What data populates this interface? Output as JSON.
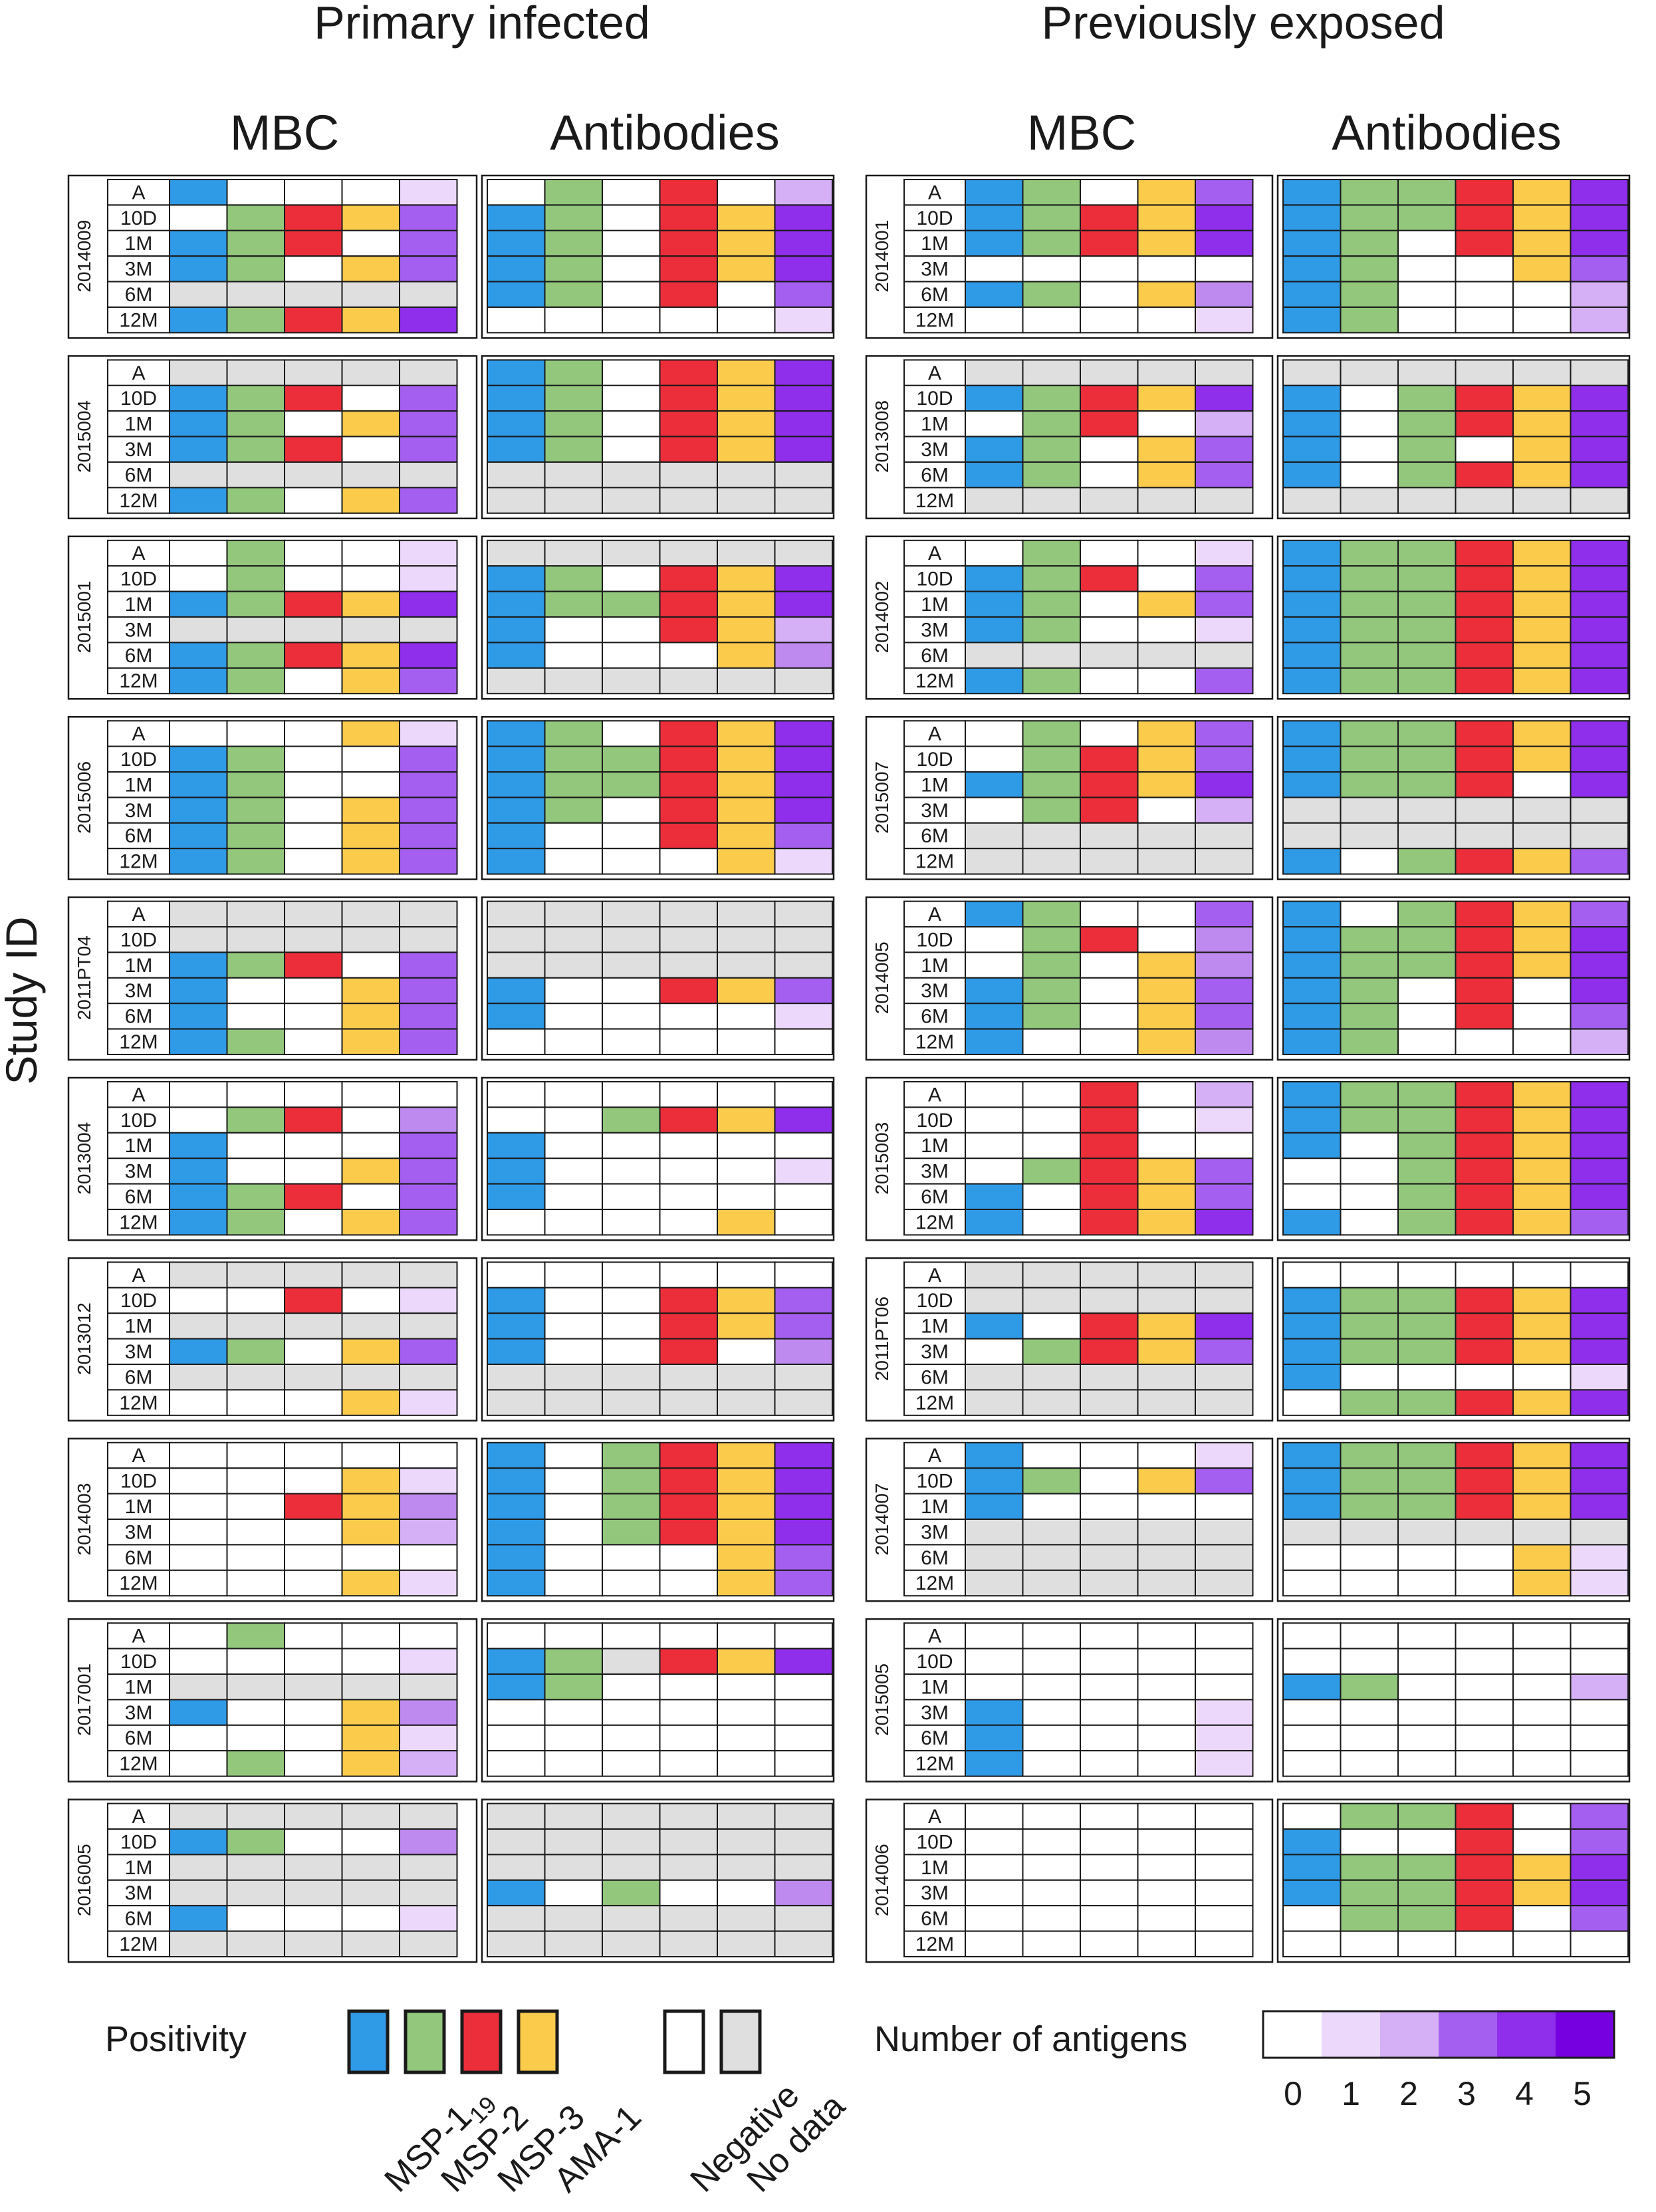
{
  "figure": {
    "groups": [
      "Primary infected",
      "Previously exposed"
    ],
    "subheadings": [
      "MBC",
      "Antibodies",
      "MBC",
      "Antibodies"
    ],
    "y_axis_label": "Study ID"
  },
  "chart_data": {
    "type": "heatmap",
    "timepoints": [
      "A",
      "10D",
      "1M",
      "3M",
      "6M",
      "12M"
    ],
    "antigens": [
      "MSP-1",
      "MSP-2",
      "MSP-3",
      "AMA-1"
    ],
    "antigen_subscript": "19",
    "antigen_colors": {
      "MSP-1": "#2f9ae6",
      "MSP-2": "#92c77c",
      "MSP-3": "#ec2e3a",
      "AMA-1": "#fbcb4c"
    },
    "negative_color": "#ffffff",
    "nodata_color": "#e0dfe0",
    "count_colors": [
      "#ffffff",
      "#ecd8fb",
      "#d5b0f6",
      "#be8aef",
      "#a55ff0",
      "#8f2eeb",
      "#7600e0"
    ],
    "encoding": "Each row lists a timepoint: one letter per antigen column (MSP-1, MSP-2, MSP-3, AMA-1) plus a digit = number of positive antigens. Letters: B/G/R/Y positive, 0 negative, X no data. X in the count column = no data.",
    "primary_infected": [
      {
        "id": "2014009",
        "mbc": [
          "B0001",
          "0GRY4",
          "BGR04",
          "BG0Y4",
          "XXXXX",
          "BGRY5"
        ],
        "ab": [
          "0GOR0",
          "BGORY",
          "BG0RY",
          "BG0RY",
          "BG0R0",
          "00000"
        ]
      },
      {
        "id": "2015004",
        "mbc": [
          "XXXXX",
          "BGR04",
          "BG0Y4",
          "BGR04",
          "XXXXX",
          "BG0Y4"
        ],
        "ab": [
          "BG0RY",
          "BG0RY",
          "BG0RY",
          "BG0RY",
          "XXXXX",
          "XXXXX"
        ]
      },
      {
        "id": "2015001",
        "mbc": [
          "0G001",
          "0G001",
          "BGRY5",
          "XXXXX",
          "BGRY5",
          "BG0Y4"
        ],
        "ab": [
          "XXXXX",
          "BG0RY",
          "BGGRY",
          "B00RY",
          "B000Y",
          "XXXXX"
        ]
      },
      {
        "id": "2015006",
        "mbc": [
          "000Y1",
          "BG004",
          "BG004",
          "BG0Y4",
          "BG0Y4",
          "BG0Y4"
        ],
        "ab": [
          "BG0RY",
          "BGGRY",
          "BGGRY",
          "BG0RY",
          "B00RY",
          "B000Y"
        ]
      },
      {
        "id": "2011PT04",
        "mbc": [
          "XXXXX",
          "XXXXX",
          "BGR04",
          "B00Y4",
          "B00Y4",
          "BG0Y4"
        ],
        "ab": [
          "XXXXX",
          "XXXXX",
          "XXXXX",
          "B00RY",
          "B0000",
          "00000"
        ]
      },
      {
        "id": "2013004",
        "mbc": [
          "00000",
          "0GR03",
          "B0004",
          "B00Y4",
          "BGR04",
          "BG0Y4"
        ],
        "ab": [
          "00000",
          "00GRY",
          "B0000",
          "B0000",
          "B0000",
          "0000Y"
        ]
      },
      {
        "id": "2013012",
        "mbc": [
          "XXXXX",
          "00R01",
          "XXXXX",
          "BG0Y4",
          "XXXXX",
          "000Y1"
        ],
        "ab": [
          "00000",
          "B00RY",
          "B00RY",
          "B00R0",
          "XXXXX",
          "XXXXX"
        ]
      },
      {
        "id": "2014003",
        "mbc": [
          "00000",
          "000Y1",
          "00RY3",
          "000Y2",
          "00000",
          "000Y1"
        ],
        "ab": [
          "B0GRY",
          "B0GRY",
          "B0GRY",
          "B0GRY",
          "B000Y",
          "B000Y"
        ]
      },
      {
        "id": "2017001",
        "mbc": [
          "0G000",
          "00001",
          "XXXXX",
          "B00Y3",
          "000Y1",
          "0G0Y2"
        ],
        "ab": [
          "00000",
          "BGXRY",
          "BG000",
          "00000",
          "00000",
          "00000"
        ]
      },
      {
        "id": "2016005",
        "mbc": [
          "XXXXX",
          "BG003",
          "XXXXX",
          "XXXXX",
          "B0001",
          "XXXXX"
        ],
        "ab": [
          "XXXXX",
          "XXXXX",
          "XXXXX",
          "B0G00",
          "XXXXX",
          "XXXXX"
        ]
      }
    ],
    "previously_exposed": [
      {
        "id": "2014001",
        "mbc": [
          "BG0Y4",
          "BGRY5",
          "BGRY5",
          "00000",
          "BG0Y3",
          "00001"
        ],
        "ab": [
          "BGGRY",
          "BGGRY",
          "BG0RY",
          "BG00Y",
          "BG000",
          "BG000"
        ]
      },
      {
        "id": "2013008",
        "mbc": [
          "XXXXX",
          "BGRY5",
          "0GR02",
          "BG0Y4",
          "BG0Y4",
          "XXXXX"
        ],
        "ab": [
          "XXXXX",
          "B0GRY",
          "B0GRY",
          "B0G0Y",
          "B0GRY",
          "XXXXX"
        ]
      },
      {
        "id": "2014002",
        "mbc": [
          "0G001",
          "BGR04",
          "BG0Y4",
          "BG001",
          "XXXXX",
          "BG004"
        ],
        "ab": [
          "BGGRY",
          "BGGRY",
          "BGGRY",
          "BGGRY",
          "BGGRY",
          "BGGRY"
        ]
      },
      {
        "id": "2015007",
        "mbc": [
          "0G0Y4",
          "0GRY4",
          "BGRY5",
          "0GR02",
          "XXXXX",
          "XXXXX"
        ],
        "ab": [
          "BGGRY",
          "BGGRY",
          "BGGR0",
          "XXXXX",
          "XXXXX",
          "B0GRY"
        ]
      },
      {
        "id": "2014005",
        "mbc": [
          "BG004",
          "0GR03",
          "0G0Y3",
          "BG0Y4",
          "BG0Y4",
          "B00Y3"
        ],
        "ab": [
          "B0GRY",
          "BGGRY",
          "BGGRY",
          "BG0R0",
          "BG0R0",
          "BG000"
        ]
      },
      {
        "id": "2015003",
        "mbc": [
          "00R02",
          "00R01",
          "00R00",
          "0GRY4",
          "B0RY4",
          "B0RY5"
        ],
        "ab": [
          "BGGRY",
          "BGGRY",
          "B0GRY",
          "00GRY",
          "00GRY",
          "B0GRY"
        ]
      },
      {
        "id": "2011PT06",
        "mbc": [
          "XXXXX",
          "XXXXX",
          "B0RY5",
          "0GRY4",
          "XXXXX",
          "XXXXX"
        ],
        "ab": [
          "00000",
          "BGGRY",
          "BGGRY",
          "BGGRY",
          "B0000",
          "0GGRY"
        ]
      },
      {
        "id": "2014007",
        "mbc": [
          "B0001",
          "BG0Y4",
          "B0000",
          "XXXXX",
          "XXXXX",
          "XXXXX"
        ],
        "ab": [
          "BGGRY",
          "BGGRY",
          "BGGRY",
          "XXXXX",
          "0000Y",
          "0000Y"
        ]
      },
      {
        "id": "2015005",
        "mbc": [
          "00000",
          "00000",
          "00000",
          "B0001",
          "B0001",
          "B0001"
        ],
        "ab": [
          "00000",
          "00000",
          "BG000",
          "00000",
          "00000",
          "00000"
        ]
      },
      {
        "id": "2014006",
        "mbc": [
          "00000",
          "00000",
          "00000",
          "00000",
          "00000",
          "00000"
        ],
        "ab": [
          "0GGR0",
          "B00R0",
          "BGGRY",
          "BGGRY",
          "0GGR0",
          "00000"
        ]
      }
    ],
    "count_map_note": "Antibody rows list antigen columns only; count column for antibodies in order given below.",
    "ab_counts_primary": [
      [
        "2",
        "5",
        "5",
        "5",
        "4",
        "1"
      ],
      [
        "5",
        "5",
        "5",
        "5",
        "X",
        "X"
      ],
      [
        "X",
        "5",
        "5",
        "2",
        "3",
        "X"
      ],
      [
        "5",
        "5",
        "5",
        "5",
        "4",
        "1"
      ],
      [
        "X",
        "X",
        "X",
        "4",
        "1",
        "0"
      ],
      [
        "0",
        "5",
        "0",
        "1",
        "0",
        "0"
      ],
      [
        "0",
        "4",
        "4",
        "3",
        "X",
        "X"
      ],
      [
        "5",
        "5",
        "5",
        "5",
        "4",
        "4"
      ],
      [
        "0",
        "5",
        "0",
        "0",
        "0",
        "0"
      ],
      [
        "X",
        "X",
        "X",
        "3",
        "X",
        "X"
      ]
    ],
    "ab_counts_exposed": [
      [
        "5",
        "5",
        "5",
        "4",
        "2",
        "2"
      ],
      [
        "X",
        "5",
        "5",
        "5",
        "5",
        "X"
      ],
      [
        "5",
        "5",
        "5",
        "5",
        "5",
        "5"
      ],
      [
        "5",
        "5",
        "5",
        "X",
        "X",
        "4"
      ],
      [
        "4",
        "5",
        "5",
        "5",
        "4",
        "2"
      ],
      [
        "5",
        "5",
        "5",
        "5",
        "5",
        "4"
      ],
      [
        "0",
        "5",
        "5",
        "5",
        "1",
        "5"
      ],
      [
        "5",
        "5",
        "5",
        "X",
        "1",
        "1"
      ],
      [
        "0",
        "0",
        "2",
        "0",
        "0",
        "0"
      ],
      [
        "4",
        "4",
        "5",
        "5",
        "4",
        "0"
      ]
    ]
  },
  "legend": {
    "positivity_label": "Positivity",
    "items": [
      "MSP-1",
      "MSP-2",
      "MSP-3",
      "AMA-1",
      "Negative",
      "No data"
    ],
    "count_label": "Number of antigens",
    "count_ticks": [
      "0",
      "1",
      "2",
      "3",
      "4",
      "5"
    ]
  }
}
